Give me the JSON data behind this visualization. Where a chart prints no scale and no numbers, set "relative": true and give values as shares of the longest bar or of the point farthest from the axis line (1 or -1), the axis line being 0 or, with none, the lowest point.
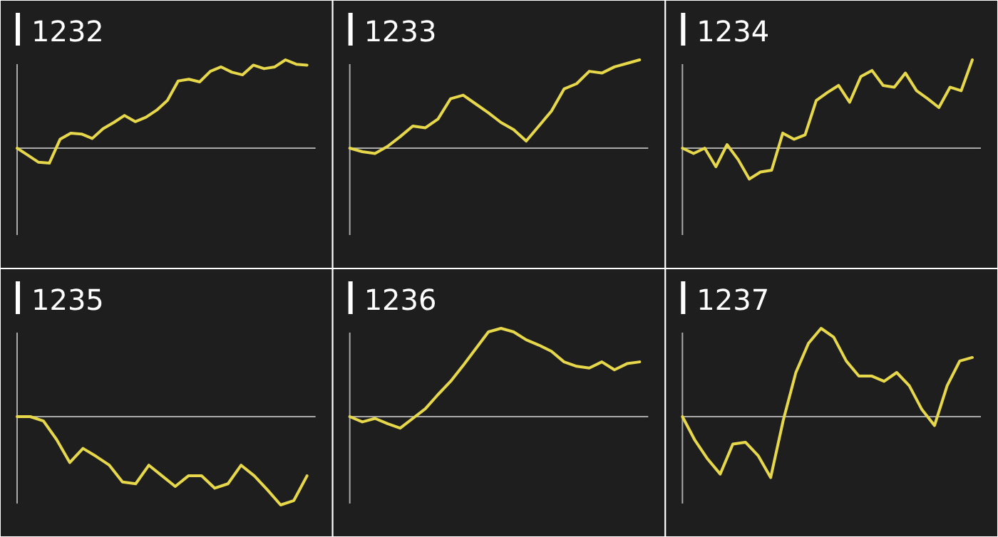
{
  "chart_data": [
    {
      "type": "line",
      "title": "1232",
      "relative": true,
      "categories": [
        null,
        null,
        null,
        null,
        null,
        null,
        null,
        null,
        null,
        null,
        null,
        null,
        null,
        null,
        null,
        null,
        null,
        null,
        null,
        null,
        null,
        null,
        null,
        null,
        null,
        null,
        null,
        null
      ],
      "series": [
        {
          "color": "#e6d84a",
          "values": [
            0,
            -0.08,
            -0.16,
            -0.17,
            0.1,
            0.17,
            0.16,
            0.11,
            0.22,
            0.29,
            0.37,
            0.3,
            0.35,
            0.43,
            0.54,
            0.76,
            0.78,
            0.75,
            0.87,
            0.92,
            0.86,
            0.83,
            0.94,
            0.9,
            0.92,
            1,
            0.95,
            0.94
          ]
        }
      ]
    },
    {
      "type": "line",
      "title": "1233",
      "relative": true,
      "categories": [
        null,
        null,
        null,
        null,
        null,
        null,
        null,
        null,
        null,
        null,
        null,
        null,
        null,
        null,
        null,
        null,
        null,
        null,
        null,
        null,
        null,
        null,
        null,
        null
      ],
      "series": [
        {
          "color": "#e6d84a",
          "values": [
            0,
            -0.04,
            -0.06,
            0.02,
            0.13,
            0.25,
            0.23,
            0.33,
            0.56,
            0.6,
            0.5,
            0.4,
            0.29,
            0.21,
            0.08,
            0.25,
            0.42,
            0.67,
            0.73,
            0.87,
            0.85,
            0.92,
            0.96,
            1
          ]
        }
      ]
    },
    {
      "type": "line",
      "title": "1234",
      "relative": true,
      "categories": [
        null,
        null,
        null,
        null,
        null,
        null,
        null,
        null,
        null,
        null,
        null,
        null,
        null,
        null,
        null,
        null,
        null,
        null,
        null,
        null,
        null,
        null,
        null,
        null,
        null,
        null,
        null
      ],
      "series": [
        {
          "color": "#e6d84a",
          "values": [
            0,
            -0.06,
            0,
            -0.21,
            0.04,
            -0.13,
            -0.35,
            -0.27,
            -0.25,
            0.17,
            0.1,
            0.15,
            0.54,
            0.63,
            0.71,
            0.52,
            0.81,
            0.88,
            0.71,
            0.69,
            0.85,
            0.65,
            0.56,
            0.46,
            0.69,
            0.65,
            1
          ]
        }
      ]
    },
    {
      "type": "line",
      "title": "1235",
      "relative": true,
      "categories": [
        null,
        null,
        null,
        null,
        null,
        null,
        null,
        null,
        null,
        null,
        null,
        null,
        null,
        null,
        null,
        null,
        null,
        null,
        null,
        null,
        null,
        null,
        null
      ],
      "series": [
        {
          "color": "#e6d84a",
          "values": [
            0,
            0,
            -0.05,
            -0.26,
            -0.52,
            -0.36,
            -0.45,
            -0.55,
            -0.74,
            -0.76,
            -0.55,
            -0.67,
            -0.79,
            -0.67,
            -0.67,
            -0.81,
            -0.76,
            -0.55,
            -0.67,
            -0.83,
            -1,
            -0.95,
            -0.67
          ]
        }
      ]
    },
    {
      "type": "line",
      "title": "1236",
      "relative": true,
      "categories": [
        null,
        null,
        null,
        null,
        null,
        null,
        null,
        null,
        null,
        null,
        null,
        null,
        null,
        null,
        null,
        null,
        null,
        null,
        null,
        null,
        null,
        null,
        null,
        null
      ],
      "series": [
        {
          "color": "#e6d84a",
          "values": [
            0,
            -0.06,
            -0.02,
            -0.08,
            -0.13,
            -0.02,
            0.09,
            0.25,
            0.4,
            0.58,
            0.77,
            0.96,
            1,
            0.96,
            0.87,
            0.81,
            0.74,
            0.62,
            0.57,
            0.55,
            0.62,
            0.53,
            0.6,
            0.62
          ]
        }
      ]
    },
    {
      "type": "line",
      "title": "1237",
      "relative": true,
      "categories": [
        null,
        null,
        null,
        null,
        null,
        null,
        null,
        null,
        null,
        null,
        null,
        null,
        null,
        null,
        null,
        null,
        null,
        null,
        null,
        null,
        null,
        null,
        null,
        null
      ],
      "series": [
        {
          "color": "#e6d84a",
          "values": [
            0,
            -0.27,
            -0.48,
            -0.65,
            -0.31,
            -0.29,
            -0.44,
            -0.69,
            -0.04,
            0.5,
            0.83,
            1,
            0.9,
            0.63,
            0.46,
            0.46,
            0.4,
            0.5,
            0.35,
            0.08,
            -0.1,
            0.35,
            0.63,
            0.67
          ]
        }
      ]
    }
  ]
}
